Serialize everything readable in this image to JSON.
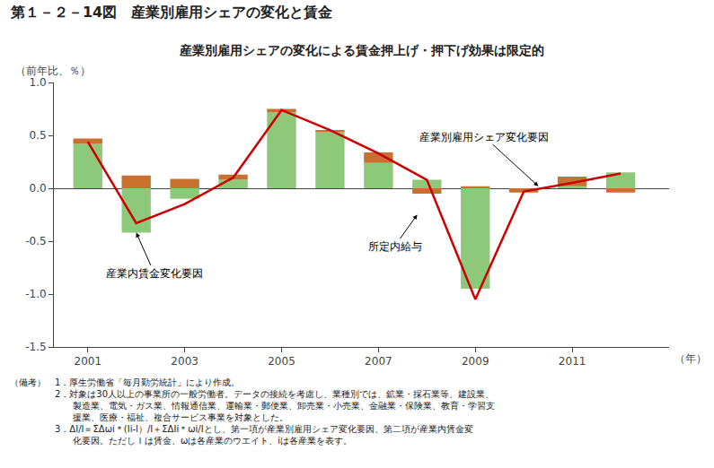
{
  "chart_data": {
    "type": "bar",
    "title": "第１－２－14図　産業別雇用シェアの変化と賃金",
    "subtitle": "産業別雇用シェアの変化による賃金押上げ・押下げ効果は限定的",
    "ylabel": "（前年比、％）",
    "xlabel": "（年）",
    "x": [
      2001,
      2002,
      2003,
      2004,
      2005,
      2006,
      2007,
      2008,
      2009,
      2010,
      2011,
      2012
    ],
    "series": [
      {
        "name": "産業内賃金変化要因",
        "type": "bar",
        "color": "#8ec87a",
        "values": [
          0.42,
          -0.42,
          -0.1,
          0.08,
          0.72,
          0.53,
          0.24,
          0.08,
          -0.95,
          0.0,
          0.02,
          0.15
        ]
      },
      {
        "name": "産業別雇用シェア変化要因",
        "type": "bar",
        "color": "#c87030",
        "values": [
          0.05,
          0.12,
          0.09,
          0.05,
          0.03,
          0.02,
          0.1,
          -0.05,
          0.02,
          -0.04,
          0.09,
          -0.04
        ]
      },
      {
        "name": "所定内給与",
        "type": "line",
        "color": "#cc0000",
        "values": [
          0.44,
          -0.33,
          -0.15,
          0.1,
          0.74,
          0.55,
          0.33,
          0.08,
          -1.05,
          -0.03,
          0.05,
          0.14
        ]
      }
    ],
    "stacked": true,
    "xlim": [
      2000.3,
      2013.0
    ],
    "xticks": [
      2001,
      2003,
      2005,
      2007,
      2009,
      2011
    ],
    "ylim": [
      -1.5,
      1.0
    ],
    "yticks": [
      -1.5,
      {
        "value": -1.0,
        "label": "-1.0"
      },
      -0.5,
      {
        "value": 0.0,
        "label": "0.0"
      },
      0.5,
      {
        "value": 1.0,
        "label": "1.0"
      }
    ],
    "grid": false,
    "annotations": [
      {
        "text": "産業内賃金変化要因",
        "x": 2002,
        "y": -0.42
      },
      {
        "text": "産業別雇用シェア変化要因",
        "x": 2010.3,
        "y": 0.02
      },
      {
        "text": "所定内給与",
        "x": 2007.8,
        "y": -0.25
      }
    ],
    "notes": [
      "（備考）　1．厚生労働省「毎月勤労統計」により作成。",
      "　　　　　2．対象は30人以上の事業所の一般労働者。データの接続を考慮し、業種別では、鉱業・採石業等、建設業、",
      "　　　　　　　製造業、電気・ガス業、情報通信業、運輸業・郵便業、卸売業・小売業、金融業・保険業、教育・学習支",
      "　　　　　　　援業、医療・福祉、複合サービス事業を対象とした。",
      "　　　　　3．ΔI/I＝ΣΔωi＊(Ii-I）/I＋ΣΔIi＊ωi/Iとし、第一項が産業別雇用シェア変化要因、第二項が産業内賃金変",
      "　　　　　　　化要因。ただしＩは賃金、ωは各産業のウエイト、iは各産業を表す。"
    ]
  }
}
